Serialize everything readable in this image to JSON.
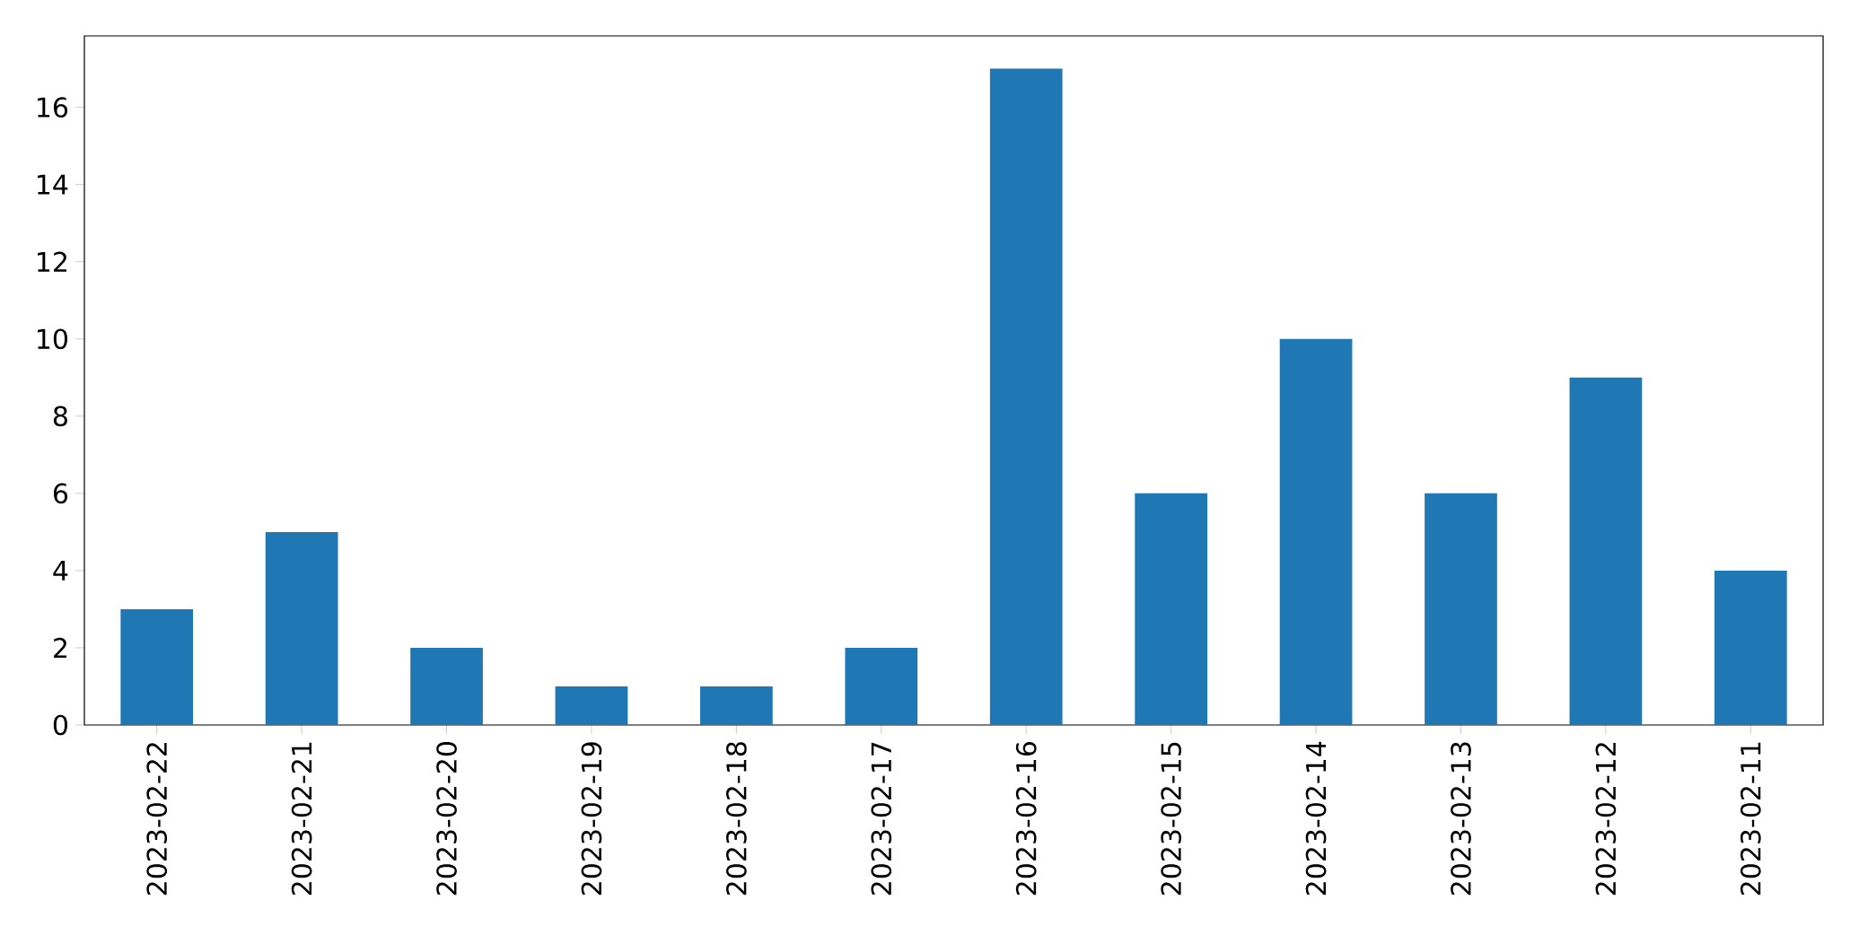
{
  "chart_data": {
    "type": "bar",
    "categories": [
      "2023-02-22",
      "2023-02-21",
      "2023-02-20",
      "2023-02-19",
      "2023-02-18",
      "2023-02-17",
      "2023-02-16",
      "2023-02-15",
      "2023-02-14",
      "2023-02-13",
      "2023-02-12",
      "2023-02-11"
    ],
    "values": [
      3,
      5,
      2,
      1,
      1,
      2,
      17,
      6,
      10,
      6,
      9,
      4
    ],
    "color": "#1f77b4",
    "ylim": [
      0,
      17.85
    ],
    "yticks": [
      0,
      2,
      4,
      6,
      8,
      10,
      12,
      14,
      16
    ]
  }
}
